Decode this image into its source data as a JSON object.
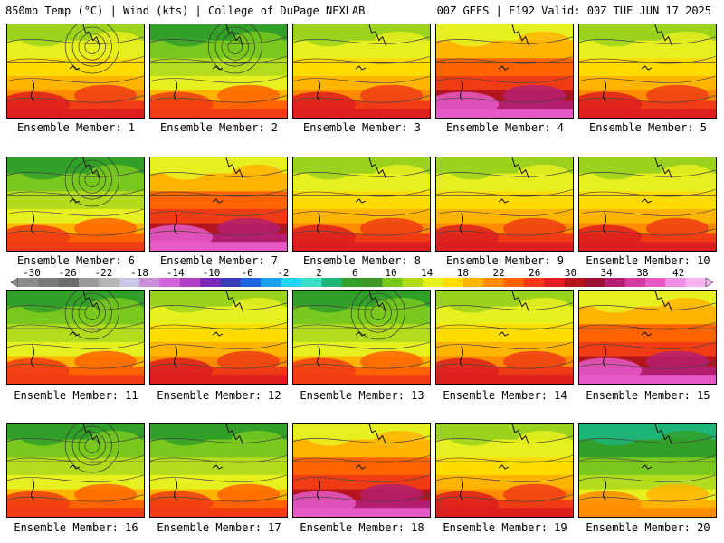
{
  "header": {
    "left": "850mb Temp (°C) | Wind (kts) | College of DuPage NEXLAB",
    "right": "00Z GEFS | F192 Valid: 00Z TUE JUN 17 2025"
  },
  "members": [
    {
      "label": "Ensemble Member: 1",
      "palette": "warm",
      "low": true
    },
    {
      "label": "Ensemble Member: 2",
      "palette": "cool",
      "low": true
    },
    {
      "label": "Ensemble Member: 3",
      "palette": "warm",
      "low": false
    },
    {
      "label": "Ensemble Member: 4",
      "palette": "hot",
      "low": false
    },
    {
      "label": "Ensemble Member: 5",
      "palette": "warm",
      "low": false
    },
    {
      "label": "Ensemble Member: 6",
      "palette": "cool",
      "low": true
    },
    {
      "label": "Ensemble Member: 7",
      "palette": "hot",
      "low": false
    },
    {
      "label": "Ensemble Member: 8",
      "palette": "warm",
      "low": false
    },
    {
      "label": "Ensemble Member: 9",
      "palette": "warm",
      "low": false
    },
    {
      "label": "Ensemble Member: 10",
      "palette": "warm",
      "low": false
    },
    {
      "label": "Ensemble Member: 11",
      "palette": "cool",
      "low": true
    },
    {
      "label": "Ensemble Member: 12",
      "palette": "warm",
      "low": false
    },
    {
      "label": "Ensemble Member: 13",
      "palette": "cool",
      "low": true
    },
    {
      "label": "Ensemble Member: 14",
      "palette": "warm",
      "low": false
    },
    {
      "label": "Ensemble Member: 15",
      "palette": "hot",
      "low": false
    },
    {
      "label": "Ensemble Member: 16",
      "palette": "cool",
      "low": true
    },
    {
      "label": "Ensemble Member: 17",
      "palette": "cool",
      "low": false
    },
    {
      "label": "Ensemble Member: 18",
      "palette": "hot",
      "low": false
    },
    {
      "label": "Ensemble Member: 19",
      "palette": "warm",
      "low": false
    },
    {
      "label": "Ensemble Member: 20",
      "palette": "teal",
      "low": false
    }
  ],
  "colorbar": {
    "ticks": [
      "-30",
      "-26",
      "-22",
      "-18",
      "-14",
      "-10",
      "-6",
      "-2",
      "2",
      "6",
      "10",
      "14",
      "18",
      "22",
      "26",
      "30",
      "34",
      "38",
      "42"
    ],
    "colors": [
      "#8c8c8c",
      "#7a7a7a",
      "#6c6c6c",
      "#9a9a9a",
      "#b4b4b4",
      "#c8c8e6",
      "#c890d8",
      "#d264dc",
      "#b440c8",
      "#7a28b4",
      "#3c3cb4",
      "#1e64dc",
      "#1ea0f0",
      "#28d2f0",
      "#3cdcc8",
      "#1eb478",
      "#32a028",
      "#3c9628",
      "#78c81e",
      "#b4dc1e",
      "#e6f01e",
      "#ffdc00",
      "#ffb400",
      "#ff8c00",
      "#ff6400",
      "#f03c14",
      "#dc1e1e",
      "#b4141e",
      "#961432",
      "#b41e6e",
      "#d23ca0",
      "#e65ac8",
      "#f08ce6",
      "#f5b4f0"
    ]
  }
}
